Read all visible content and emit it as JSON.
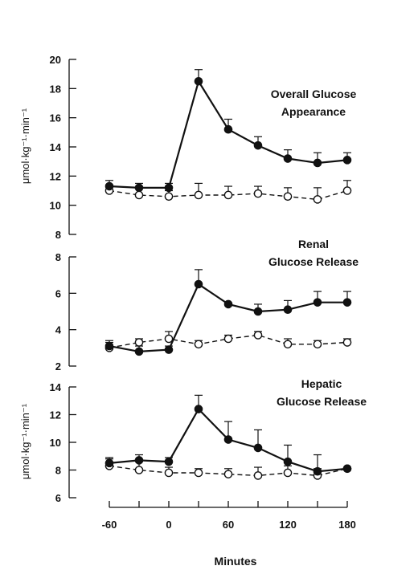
{
  "chart_data": [
    {
      "type": "line",
      "title_lines": [
        "Overall Glucose",
        "Appearance"
      ],
      "ylabel": "μmol·kg⁻¹·min⁻¹",
      "ylim": [
        8,
        20
      ],
      "yticks": [
        8,
        10,
        12,
        14,
        16,
        18,
        20
      ],
      "x": [
        -60,
        -30,
        0,
        30,
        60,
        90,
        120,
        150,
        180
      ],
      "series": [
        {
          "marker": "filled",
          "dash": "solid",
          "values": [
            11.3,
            11.2,
            11.2,
            18.5,
            15.2,
            14.1,
            13.2,
            12.9,
            13.1
          ],
          "errors": [
            0.4,
            0.3,
            0.3,
            0.8,
            0.7,
            0.6,
            0.6,
            0.7,
            0.5
          ]
        },
        {
          "marker": "open",
          "dash": "dashed",
          "values": [
            11.0,
            10.7,
            10.6,
            10.7,
            10.7,
            10.8,
            10.6,
            10.4,
            11.0
          ],
          "errors": [
            0.4,
            0.5,
            0.4,
            0.8,
            0.6,
            0.5,
            0.6,
            0.8,
            0.7
          ]
        }
      ]
    },
    {
      "type": "line",
      "title_lines": [
        "Renal",
        "Glucose Release"
      ],
      "ylabel": "",
      "ylim": [
        2,
        8
      ],
      "yticks": [
        2,
        4,
        6,
        8
      ],
      "x": [
        -60,
        -30,
        0,
        30,
        60,
        90,
        120,
        150,
        180
      ],
      "series": [
        {
          "marker": "filled",
          "dash": "solid",
          "values": [
            3.1,
            2.8,
            2.9,
            6.5,
            5.4,
            5.0,
            5.1,
            5.5,
            5.5
          ],
          "errors": [
            0.3,
            0.3,
            0.2,
            0.8,
            0.0,
            0.4,
            0.5,
            0.6,
            0.6
          ]
        },
        {
          "marker": "open",
          "dash": "dashed",
          "values": [
            3.0,
            3.3,
            3.5,
            3.2,
            3.5,
            3.7,
            3.2,
            3.2,
            3.3
          ],
          "errors": [
            0.3,
            0.2,
            0.4,
            0.2,
            0.2,
            0.2,
            0.3,
            0.2,
            0.2
          ]
        }
      ]
    },
    {
      "type": "line",
      "title_lines": [
        "Hepatic",
        "Glucose Release"
      ],
      "ylabel": "μmol·kg⁻¹·min⁻¹",
      "ylim": [
        6,
        14
      ],
      "yticks": [
        6,
        8,
        10,
        12,
        14
      ],
      "x": [
        -60,
        -30,
        0,
        30,
        60,
        90,
        120,
        150,
        180
      ],
      "series": [
        {
          "marker": "filled",
          "dash": "solid",
          "values": [
            8.5,
            8.7,
            8.6,
            12.4,
            10.2,
            9.6,
            8.6,
            7.9,
            8.1
          ],
          "errors": [
            0.4,
            0.4,
            0.3,
            1.0,
            1.3,
            1.3,
            1.2,
            1.2,
            0.0
          ]
        },
        {
          "marker": "open",
          "dash": "dashed",
          "values": [
            8.3,
            8.0,
            7.8,
            7.8,
            7.7,
            7.6,
            7.8,
            7.6,
            8.1
          ],
          "errors": [
            0.5,
            0.6,
            0.4,
            0.3,
            0.4,
            0.6,
            0.5,
            0.5,
            0.0
          ]
        }
      ]
    }
  ],
  "x_axis": {
    "xlabel": "Minutes",
    "xlim": [
      -60,
      180
    ],
    "ticks": [
      -60,
      -30,
      0,
      30,
      60,
      90,
      120,
      150,
      180
    ],
    "tick_labels": [
      {
        "value": -60,
        "label": "-60"
      },
      {
        "value": 0,
        "label": "0"
      },
      {
        "value": 60,
        "label": "60"
      },
      {
        "value": 120,
        "label": "120"
      },
      {
        "value": 180,
        "label": "180"
      }
    ]
  },
  "colors": {
    "line": "#111111",
    "open_fill": "#ffffff",
    "background": "#ffffff"
  }
}
